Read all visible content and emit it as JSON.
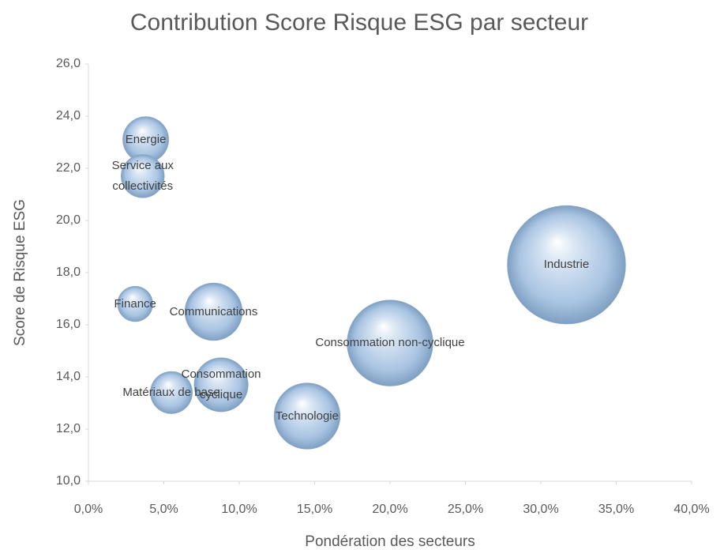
{
  "chart_data": {
    "type": "bubble",
    "title": "Contribution Score Risque ESG par secteur",
    "x_label": "Pondération des secteurs",
    "y_label": "Score de Risque ESG",
    "labels": [
      "Energie",
      "Service aux collectivités",
      "Finance",
      "Communications",
      "Consommation cyclique",
      "Matériaux de base",
      "Technologie",
      "Consommation non-cyclique",
      "Industrie"
    ],
    "x": [
      3.8,
      3.6,
      3.1,
      8.3,
      8.8,
      5.5,
      14.5,
      20.0,
      31.7
    ],
    "values": [
      23.1,
      21.7,
      16.8,
      16.5,
      13.7,
      13.4,
      12.5,
      15.3,
      18.3
    ],
    "sizes": [
      0.88,
      0.78,
      0.52,
      1.37,
      1.21,
      0.74,
      1.81,
      3.06,
      5.8
    ],
    "color": "#a9c4e2",
    "xlim": [
      0,
      40
    ],
    "ylim": [
      10,
      26
    ],
    "xticks": [
      {
        "value": 0,
        "label": "0,0%"
      },
      {
        "value": 5,
        "label": "5,0%"
      },
      {
        "value": 10,
        "label": "10,0%"
      },
      {
        "value": 15,
        "label": "15,0%"
      },
      {
        "value": 20,
        "label": "20,0%"
      },
      {
        "value": 25,
        "label": "25,0%"
      },
      {
        "value": 30,
        "label": "30,0%"
      },
      {
        "value": 35,
        "label": "35,0%"
      },
      {
        "value": 40,
        "label": "40,0%"
      }
    ],
    "yticks": [
      {
        "value": 10,
        "label": "10,0"
      },
      {
        "value": 12,
        "label": "12,0"
      },
      {
        "value": 14,
        "label": "14,0"
      },
      {
        "value": 16,
        "label": "16,0"
      },
      {
        "value": 18,
        "label": "18,0"
      },
      {
        "value": 20,
        "label": "20,0"
      },
      {
        "value": 22,
        "label": "22,0"
      },
      {
        "value": 24,
        "label": "24,0"
      },
      {
        "value": 26,
        "label": "26,0"
      }
    ],
    "grid": false
  }
}
